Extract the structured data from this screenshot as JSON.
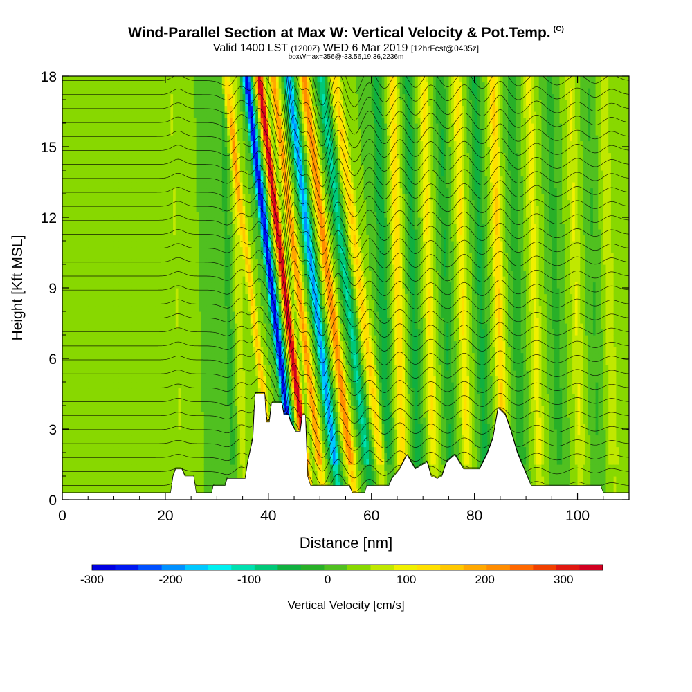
{
  "title": {
    "main": "Wind-Parallel Section at Max W: Vertical Velocity & Pot.Temp.",
    "main_mark": "(C)",
    "valid_prefix": "Valid 1400 LST",
    "valid_utc": "(1200Z)",
    "valid_date": "WED 6 Mar 2019",
    "forecast": "[12hrFcst@0435z]",
    "box_info": "boxWmax=356@-33.56,19.36,2236m"
  },
  "chart_data": {
    "type": "heatmap",
    "xlabel": "Distance [nm]",
    "ylabel": "Height [Kft MSL]",
    "xlim": [
      0,
      110
    ],
    "ylim": [
      0,
      18
    ],
    "x_ticks": [
      0,
      20,
      40,
      60,
      80,
      100
    ],
    "y_ticks": [
      0,
      3,
      6,
      9,
      12,
      15,
      18
    ],
    "terrain_kft": [
      [
        0,
        0.3
      ],
      [
        21,
        0.3
      ],
      [
        21.5,
        1.0
      ],
      [
        22,
        1.3
      ],
      [
        23.2,
        1.3
      ],
      [
        23.8,
        1.0
      ],
      [
        25.5,
        1.0
      ],
      [
        26,
        0.3
      ],
      [
        29,
        0.3
      ],
      [
        29.3,
        0.6
      ],
      [
        31.6,
        0.6
      ],
      [
        32,
        0.9
      ],
      [
        35.5,
        0.9
      ],
      [
        36,
        1.6
      ],
      [
        37,
        2.6
      ],
      [
        37.4,
        4.5
      ],
      [
        39.3,
        4.5
      ],
      [
        39.6,
        3.3
      ],
      [
        40.2,
        3.3
      ],
      [
        40.6,
        4.1
      ],
      [
        42.6,
        4.1
      ],
      [
        43,
        3.6
      ],
      [
        43.9,
        3.6
      ],
      [
        44.3,
        3.3
      ],
      [
        45.3,
        2.9
      ],
      [
        46.2,
        2.9
      ],
      [
        46.6,
        3.6
      ],
      [
        47.2,
        3.6
      ],
      [
        47.6,
        1.0
      ],
      [
        48.2,
        0.6
      ],
      [
        55.7,
        0.6
      ],
      [
        56.3,
        0.3
      ],
      [
        58.7,
        0.3
      ],
      [
        59.1,
        0.6
      ],
      [
        63.4,
        0.6
      ],
      [
        64,
        0.9
      ],
      [
        65.5,
        1.3
      ],
      [
        66.9,
        1.9
      ],
      [
        68.5,
        1.3
      ],
      [
        70.8,
        1.6
      ],
      [
        71.6,
        1.0
      ],
      [
        72.8,
        0.9
      ],
      [
        73.7,
        1.0
      ],
      [
        74.6,
        1.6
      ],
      [
        76.2,
        1.9
      ],
      [
        77.9,
        1.3
      ],
      [
        81,
        1.3
      ],
      [
        82.4,
        1.9
      ],
      [
        83.6,
        2.6
      ],
      [
        84.6,
        3.9
      ],
      [
        86,
        3.6
      ],
      [
        87.1,
        2.9
      ],
      [
        88.3,
        2.0
      ],
      [
        90.2,
        1.0
      ],
      [
        91,
        0.6
      ],
      [
        94.2,
        0.6
      ],
      [
        94.6,
        0.6
      ],
      [
        104.5,
        0.6
      ],
      [
        105,
        0.3
      ],
      [
        110,
        0.3
      ]
    ],
    "wave_ridges_nm": [
      {
        "x": 22.5,
        "amp": 50,
        "width": 0.9
      },
      {
        "x": 32.5,
        "amp": -60,
        "width": 1.1
      },
      {
        "x": 34.5,
        "amp": 90,
        "width": 0.9
      },
      {
        "x": 38.2,
        "amp": 130,
        "width": 0.7
      },
      {
        "x": 42.3,
        "amp": -310,
        "width": 0.8
      },
      {
        "x": 44.8,
        "amp": 340,
        "width": 0.7
      },
      {
        "x": 47.5,
        "amp": 180,
        "width": 0.8
      },
      {
        "x": 50.5,
        "amp": -220,
        "width": 0.9
      },
      {
        "x": 53.5,
        "amp": 200,
        "width": 0.9
      },
      {
        "x": 56.8,
        "amp": -120,
        "width": 1.0
      },
      {
        "x": 59.5,
        "amp": 120,
        "width": 1.0
      },
      {
        "x": 62.5,
        "amp": -80,
        "width": 1.0
      },
      {
        "x": 65.5,
        "amp": 110,
        "width": 1.0
      },
      {
        "x": 68.5,
        "amp": -70,
        "width": 1.0
      },
      {
        "x": 71.5,
        "amp": 90,
        "width": 1.0
      },
      {
        "x": 74.8,
        "amp": -60,
        "width": 1.0
      },
      {
        "x": 78.0,
        "amp": 90,
        "width": 1.0
      },
      {
        "x": 81.5,
        "amp": -70,
        "width": 1.0
      },
      {
        "x": 85.0,
        "amp": 120,
        "width": 1.0
      },
      {
        "x": 88.5,
        "amp": -50,
        "width": 1.1
      },
      {
        "x": 92.0,
        "amp": 70,
        "width": 1.1
      },
      {
        "x": 96.0,
        "amp": -40,
        "width": 1.1
      },
      {
        "x": 100.0,
        "amp": 60,
        "width": 1.1
      },
      {
        "x": 103.5,
        "amp": -30,
        "width": 1.1
      },
      {
        "x": 106.5,
        "amp": 50,
        "width": 1.1
      }
    ],
    "theta_contour_levels": 30,
    "colorbar": {
      "label": "Vertical Velocity [cm/s]",
      "tick_labels": [
        "-300",
        "-200",
        "-100",
        "0",
        "100",
        "200",
        "300"
      ],
      "tick_values": [
        -300,
        -200,
        -100,
        0,
        100,
        200,
        300
      ],
      "range": [
        -300,
        350
      ],
      "colors": [
        "#0000e0",
        "#0018f0",
        "#0050ff",
        "#0090ff",
        "#00c8ff",
        "#00f0f0",
        "#00e0b0",
        "#00c878",
        "#10b040",
        "#28b028",
        "#50c020",
        "#88d800",
        "#c0e800",
        "#f0f000",
        "#ffe000",
        "#ffc800",
        "#ffa800",
        "#ff8c00",
        "#ff6800",
        "#f04000",
        "#e01810",
        "#d00020"
      ]
    }
  }
}
